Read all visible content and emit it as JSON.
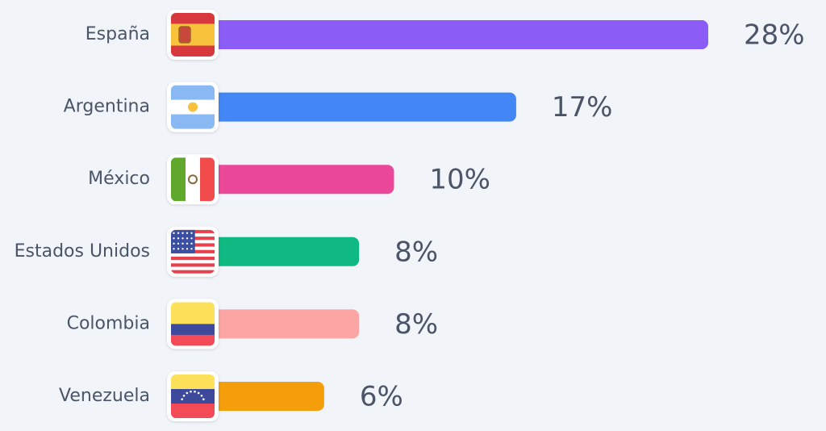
{
  "chart_data": {
    "type": "bar",
    "orientation": "horizontal",
    "categories": [
      "España",
      "Argentina",
      "México",
      "Estados Unidos",
      "Colombia",
      "Venezuela"
    ],
    "values": [
      28,
      17,
      10,
      8,
      8,
      6
    ],
    "value_labels": [
      "28%",
      "17%",
      "10%",
      "8%",
      "8%",
      "6%"
    ],
    "colors": [
      "#8b5cf6",
      "#4287f5",
      "#ec4899",
      "#10b981",
      "#fca5a5",
      "#f59e0b"
    ]
  }
}
